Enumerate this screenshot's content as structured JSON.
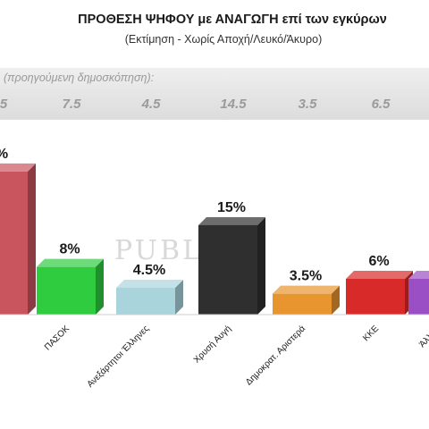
{
  "header": {
    "title": "ΠΡΟΘΕΣΗ ΨΗΦΟΥ με ΑΝΑΓΩΓΗ επί των εγκύρων",
    "subtitle": "(Εκτίμηση  -  Χωρίς Αποχή/Λευκό/Άκυρο)",
    "previous_caption": "(προηγούμενη δημοσκόπηση):"
  },
  "watermark": "PUBLIC",
  "chart_data": {
    "type": "bar",
    "title": "ΠΡΟΘΕΣΗ ΨΗΦΟΥ με ΑΝΑΓΩΓΗ επί των εγκύρων",
    "subtitle": "(Εκτίμηση  -  Χωρίς Αποχή/Λευκό/Άκυρο)",
    "categories": [
      "",
      "ΠΑΣΟΚ",
      "Ανεξάρτητοι Έλληνες",
      "Χρυσή Αυγή",
      "Δημοκρατ. Αριστερά",
      "ΚΚΕ",
      "Άλλο κ"
    ],
    "values": [
      24,
      8,
      4.5,
      15,
      3.5,
      6,
      6
    ],
    "value_labels": [
      "%",
      "8%",
      "4.5%",
      "15%",
      "3.5%",
      "6%",
      ""
    ],
    "previous_labels": [
      "5",
      "7.5",
      "4.5",
      "14.5",
      "3.5",
      "6.5",
      ""
    ],
    "colors": [
      "#c9555f",
      "#2fcc3f",
      "#a9d4dc",
      "#2f2f2f",
      "#e8952f",
      "#d92a2a",
      "#9b4fc4"
    ],
    "grid": false,
    "legend": "none"
  }
}
